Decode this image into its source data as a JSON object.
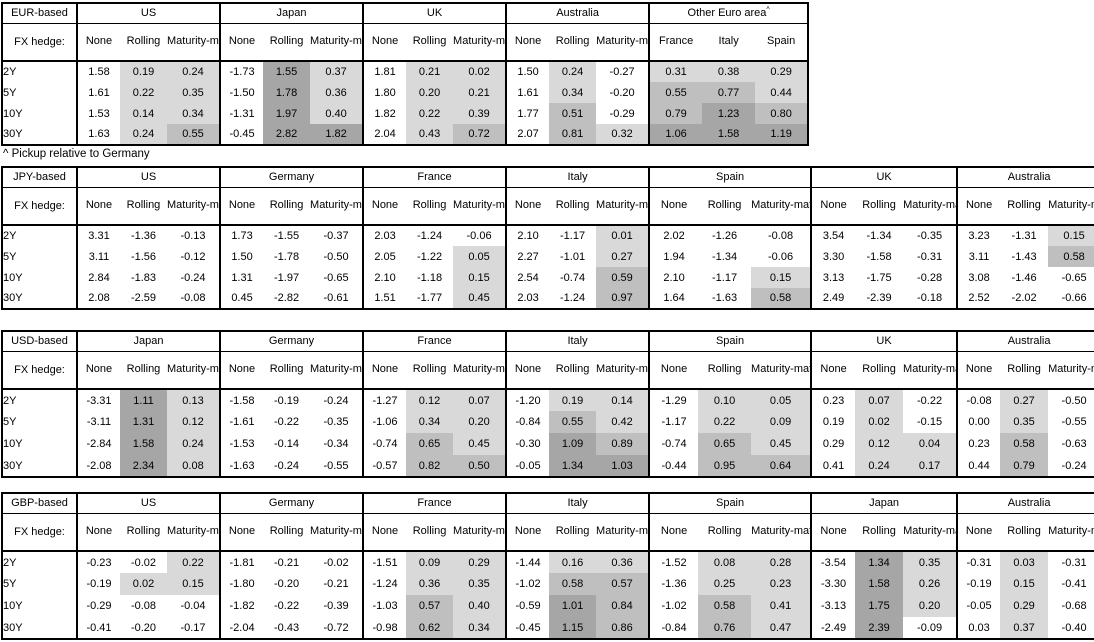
{
  "footnote": "^ Pickup relative to Germany",
  "hedge_label": "FX hedge:",
  "tenors": [
    "2Y",
    "5Y",
    "10Y",
    "30Y"
  ],
  "default_col_headers": [
    "None",
    "Rolling",
    "Maturity-matched"
  ],
  "colors": {
    "shade_light": "#d9d9d9",
    "shade_medium": "#bfbfbf",
    "shade_dark": "#a6a6a6",
    "border": "#000000",
    "background": "#ffffff"
  },
  "shading_rule": {
    "applies_to": "shaded columns only",
    "thresholds": [
      {
        "min": 1.0,
        "shade": "dark"
      },
      {
        "min": 0.5,
        "shade": "medium"
      },
      {
        "min": 0.0,
        "shade": "light"
      }
    ],
    "below_zero": "none"
  },
  "chart_data": [
    {
      "type": "table",
      "title": "EUR-based",
      "row_labels": [
        "2Y",
        "5Y",
        "10Y",
        "30Y"
      ],
      "groups": [
        {
          "name": "US",
          "cols": [
            "None",
            "Rolling",
            "Maturity-matched"
          ],
          "shade_cols": [
            false,
            true,
            true
          ],
          "rows": [
            [
              "1.58",
              "0.19",
              "0.24"
            ],
            [
              "1.61",
              "0.22",
              "0.35"
            ],
            [
              "1.53",
              "0.14",
              "0.34"
            ],
            [
              "1.63",
              "0.24",
              "0.55"
            ]
          ]
        },
        {
          "name": "Japan",
          "cols": [
            "None",
            "Rolling",
            "Maturity-matched"
          ],
          "shade_cols": [
            false,
            true,
            true
          ],
          "rows": [
            [
              "-1.73",
              "1.55",
              "0.37"
            ],
            [
              "-1.50",
              "1.78",
              "0.36"
            ],
            [
              "-1.31",
              "1.97",
              "0.40"
            ],
            [
              "-0.45",
              "2.82",
              "1.82"
            ]
          ]
        },
        {
          "name": "UK",
          "cols": [
            "None",
            "Rolling",
            "Maturity-matched"
          ],
          "shade_cols": [
            false,
            true,
            true
          ],
          "rows": [
            [
              "1.81",
              "0.21",
              "0.02"
            ],
            [
              "1.80",
              "0.20",
              "0.21"
            ],
            [
              "1.82",
              "0.22",
              "0.39"
            ],
            [
              "2.04",
              "0.43",
              "0.72"
            ]
          ]
        },
        {
          "name": "Australia",
          "cols": [
            "None",
            "Rolling",
            "Maturity-matched"
          ],
          "shade_cols": [
            false,
            true,
            true
          ],
          "rows": [
            [
              "1.50",
              "0.24",
              "-0.27"
            ],
            [
              "1.61",
              "0.34",
              "-0.20"
            ],
            [
              "1.77",
              "0.51",
              "-0.29"
            ],
            [
              "2.07",
              "0.81",
              "0.32"
            ]
          ]
        },
        {
          "name": "Other Euro area",
          "marker": "^",
          "cols": [
            "France",
            "Italy",
            "Spain"
          ],
          "shade_cols": [
            true,
            true,
            true
          ],
          "rows": [
            [
              "0.31",
              "0.38",
              "0.29"
            ],
            [
              "0.55",
              "0.77",
              "0.44"
            ],
            [
              "0.79",
              "1.23",
              "0.80"
            ],
            [
              "1.06",
              "1.58",
              "1.19"
            ]
          ]
        }
      ]
    },
    {
      "type": "table",
      "title": "JPY-based",
      "row_labels": [
        "2Y",
        "5Y",
        "10Y",
        "30Y"
      ],
      "groups": [
        {
          "name": "US",
          "cols": [
            "None",
            "Rolling",
            "Maturity-matched"
          ],
          "shade_cols": [
            false,
            true,
            true
          ],
          "rows": [
            [
              "3.31",
              "-1.36",
              "-0.13"
            ],
            [
              "3.11",
              "-1.56",
              "-0.12"
            ],
            [
              "2.84",
              "-1.83",
              "-0.24"
            ],
            [
              "2.08",
              "-2.59",
              "-0.08"
            ]
          ]
        },
        {
          "name": "Germany",
          "cols": [
            "None",
            "Rolling",
            "Maturity-matched"
          ],
          "shade_cols": [
            false,
            true,
            true
          ],
          "rows": [
            [
              "1.73",
              "-1.55",
              "-0.37"
            ],
            [
              "1.50",
              "-1.78",
              "-0.50"
            ],
            [
              "1.31",
              "-1.97",
              "-0.65"
            ],
            [
              "0.45",
              "-2.82",
              "-0.61"
            ]
          ]
        },
        {
          "name": "France",
          "cols": [
            "None",
            "Rolling",
            "Maturity-matched"
          ],
          "shade_cols": [
            false,
            true,
            true
          ],
          "rows": [
            [
              "2.03",
              "-1.24",
              "-0.06"
            ],
            [
              "2.05",
              "-1.22",
              "0.05"
            ],
            [
              "2.10",
              "-1.18",
              "0.15"
            ],
            [
              "1.51",
              "-1.77",
              "0.45"
            ]
          ]
        },
        {
          "name": "Italy",
          "cols": [
            "None",
            "Rolling",
            "Maturity-matched"
          ],
          "shade_cols": [
            false,
            true,
            true
          ],
          "rows": [
            [
              "2.10",
              "-1.17",
              "0.01"
            ],
            [
              "2.27",
              "-1.01",
              "0.27"
            ],
            [
              "2.54",
              "-0.74",
              "0.59"
            ],
            [
              "2.03",
              "-1.24",
              "0.97"
            ]
          ]
        },
        {
          "name": "Spain",
          "cols": [
            "None",
            "Rolling",
            "Maturity-matched"
          ],
          "shade_cols": [
            false,
            true,
            true
          ],
          "rows": [
            [
              "2.02",
              "-1.26",
              "-0.08"
            ],
            [
              "1.94",
              "-1.34",
              "-0.06"
            ],
            [
              "2.10",
              "-1.17",
              "0.15"
            ],
            [
              "1.64",
              "-1.63",
              "0.58"
            ]
          ]
        },
        {
          "name": "UK",
          "cols": [
            "None",
            "Rolling",
            "Maturity-matched"
          ],
          "shade_cols": [
            false,
            true,
            true
          ],
          "rows": [
            [
              "3.54",
              "-1.34",
              "-0.35"
            ],
            [
              "3.30",
              "-1.58",
              "-0.31"
            ],
            [
              "3.13",
              "-1.75",
              "-0.28"
            ],
            [
              "2.49",
              "-2.39",
              "-0.18"
            ]
          ]
        },
        {
          "name": "Australia",
          "cols": [
            "None",
            "Rolling",
            "Maturity-matched"
          ],
          "shade_cols": [
            false,
            true,
            true
          ],
          "rows": [
            [
              "3.23",
              "-1.31",
              "0.15"
            ],
            [
              "3.11",
              "-1.43",
              "0.58"
            ],
            [
              "3.08",
              "-1.46",
              "-0.65"
            ],
            [
              "2.52",
              "-2.02",
              "-0.66"
            ]
          ]
        }
      ]
    },
    {
      "type": "table",
      "title": "USD-based",
      "row_labels": [
        "2Y",
        "5Y",
        "10Y",
        "30Y"
      ],
      "groups": [
        {
          "name": "Japan",
          "cols": [
            "None",
            "Rolling",
            "Maturity-matched"
          ],
          "shade_cols": [
            false,
            true,
            true
          ],
          "rows": [
            [
              "-3.31",
              "1.11",
              "0.13"
            ],
            [
              "-3.11",
              "1.31",
              "0.12"
            ],
            [
              "-2.84",
              "1.58",
              "0.24"
            ],
            [
              "-2.08",
              "2.34",
              "0.08"
            ]
          ]
        },
        {
          "name": "Germany",
          "cols": [
            "None",
            "Rolling",
            "Maturity-matched"
          ],
          "shade_cols": [
            false,
            true,
            true
          ],
          "rows": [
            [
              "-1.58",
              "-0.19",
              "-0.24"
            ],
            [
              "-1.61",
              "-0.22",
              "-0.35"
            ],
            [
              "-1.53",
              "-0.14",
              "-0.34"
            ],
            [
              "-1.63",
              "-0.24",
              "-0.55"
            ]
          ]
        },
        {
          "name": "France",
          "cols": [
            "None",
            "Rolling",
            "Maturity-matched"
          ],
          "shade_cols": [
            false,
            true,
            true
          ],
          "rows": [
            [
              "-1.27",
              "0.12",
              "0.07"
            ],
            [
              "-1.06",
              "0.34",
              "0.20"
            ],
            [
              "-0.74",
              "0.65",
              "0.45"
            ],
            [
              "-0.57",
              "0.82",
              "0.50"
            ]
          ]
        },
        {
          "name": "Italy",
          "cols": [
            "None",
            "Rolling",
            "Maturity-matched"
          ],
          "shade_cols": [
            false,
            true,
            true
          ],
          "rows": [
            [
              "-1.20",
              "0.19",
              "0.14"
            ],
            [
              "-0.84",
              "0.55",
              "0.42"
            ],
            [
              "-0.30",
              "1.09",
              "0.89"
            ],
            [
              "-0.05",
              "1.34",
              "1.03"
            ]
          ]
        },
        {
          "name": "Spain",
          "cols": [
            "None",
            "Rolling",
            "Maturity-matched"
          ],
          "shade_cols": [
            false,
            true,
            true
          ],
          "rows": [
            [
              "-1.29",
              "0.10",
              "0.05"
            ],
            [
              "-1.17",
              "0.22",
              "0.09"
            ],
            [
              "-0.74",
              "0.65",
              "0.45"
            ],
            [
              "-0.44",
              "0.95",
              "0.64"
            ]
          ]
        },
        {
          "name": "UK",
          "cols": [
            "None",
            "Rolling",
            "Maturity-matched"
          ],
          "shade_cols": [
            false,
            true,
            true
          ],
          "rows": [
            [
              "0.23",
              "0.07",
              "-0.22"
            ],
            [
              "0.19",
              "0.02",
              "-0.15"
            ],
            [
              "0.29",
              "0.12",
              "0.04"
            ],
            [
              "0.41",
              "0.24",
              "0.17"
            ]
          ]
        },
        {
          "name": "Australia",
          "cols": [
            "None",
            "Rolling",
            "Maturity-matched"
          ],
          "shade_cols": [
            false,
            true,
            true
          ],
          "rows": [
            [
              "-0.08",
              "0.27",
              "-0.50"
            ],
            [
              "0.00",
              "0.35",
              "-0.55"
            ],
            [
              "0.23",
              "0.58",
              "-0.63"
            ],
            [
              "0.44",
              "0.79",
              "-0.24"
            ]
          ]
        }
      ]
    },
    {
      "type": "table",
      "title": "GBP-based",
      "row_labels": [
        "2Y",
        "5Y",
        "10Y",
        "30Y"
      ],
      "groups": [
        {
          "name": "US",
          "cols": [
            "None",
            "Rolling",
            "Maturity-matched"
          ],
          "shade_cols": [
            false,
            true,
            true
          ],
          "rows": [
            [
              "-0.23",
              "-0.02",
              "0.22"
            ],
            [
              "-0.19",
              "0.02",
              "0.15"
            ],
            [
              "-0.29",
              "-0.08",
              "-0.04"
            ],
            [
              "-0.41",
              "-0.20",
              "-0.17"
            ]
          ]
        },
        {
          "name": "Germany",
          "cols": [
            "None",
            "Rolling",
            "Maturity-matched"
          ],
          "shade_cols": [
            false,
            true,
            true
          ],
          "rows": [
            [
              "-1.81",
              "-0.21",
              "-0.02"
            ],
            [
              "-1.80",
              "-0.20",
              "-0.21"
            ],
            [
              "-1.82",
              "-0.22",
              "-0.39"
            ],
            [
              "-2.04",
              "-0.43",
              "-0.72"
            ]
          ]
        },
        {
          "name": "France",
          "cols": [
            "None",
            "Rolling",
            "Maturity-matched"
          ],
          "shade_cols": [
            false,
            true,
            true
          ],
          "rows": [
            [
              "-1.51",
              "0.09",
              "0.29"
            ],
            [
              "-1.24",
              "0.36",
              "0.35"
            ],
            [
              "-1.03",
              "0.57",
              "0.40"
            ],
            [
              "-0.98",
              "0.62",
              "0.34"
            ]
          ]
        },
        {
          "name": "Italy",
          "cols": [
            "None",
            "Rolling",
            "Maturity-matched"
          ],
          "shade_cols": [
            false,
            true,
            true
          ],
          "rows": [
            [
              "-1.44",
              "0.16",
              "0.36"
            ],
            [
              "-1.02",
              "0.58",
              "0.57"
            ],
            [
              "-0.59",
              "1.01",
              "0.84"
            ],
            [
              "-0.45",
              "1.15",
              "0.86"
            ]
          ]
        },
        {
          "name": "Spain",
          "cols": [
            "None",
            "Rolling",
            "Maturity-matched"
          ],
          "shade_cols": [
            false,
            true,
            true
          ],
          "rows": [
            [
              "-1.52",
              "0.08",
              "0.28"
            ],
            [
              "-1.36",
              "0.25",
              "0.23"
            ],
            [
              "-1.02",
              "0.58",
              "0.41"
            ],
            [
              "-0.84",
              "0.76",
              "0.47"
            ]
          ]
        },
        {
          "name": "Japan",
          "cols": [
            "None",
            "Rolling",
            "Maturity-matched"
          ],
          "shade_cols": [
            false,
            true,
            true
          ],
          "rows": [
            [
              "-3.54",
              "1.34",
              "0.35"
            ],
            [
              "-3.30",
              "1.58",
              "0.26"
            ],
            [
              "-3.13",
              "1.75",
              "0.20"
            ],
            [
              "-2.49",
              "2.39",
              "-0.09"
            ]
          ]
        },
        {
          "name": "Australia",
          "cols": [
            "None",
            "Rolling",
            "Maturity-matched"
          ],
          "shade_cols": [
            false,
            true,
            true
          ],
          "rows": [
            [
              "-0.31",
              "0.03",
              "-0.31"
            ],
            [
              "-0.19",
              "0.15",
              "-0.41"
            ],
            [
              "-0.05",
              "0.29",
              "-0.68"
            ],
            [
              "0.03",
              "0.37",
              "-0.40"
            ]
          ]
        }
      ]
    }
  ]
}
